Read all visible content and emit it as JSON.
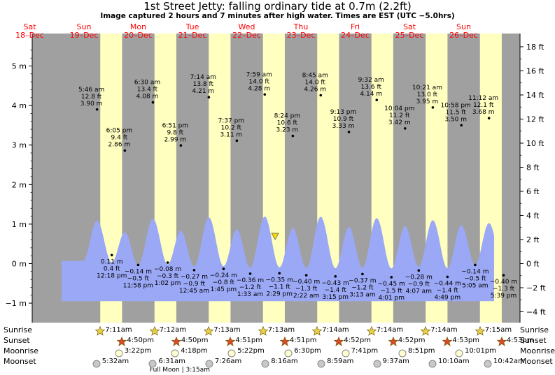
{
  "title": "1st Street Jetty: falling  ordinary tide at 0.7m (2.2ft)",
  "subtitle": "Image captured 2 hours and 7 minutes after high water. Times are EST (UTC −5.0hrs)",
  "days": [
    {
      "dow": "Sat",
      "date": "18–Dec"
    },
    {
      "dow": "Sun",
      "date": "19–Dec"
    },
    {
      "dow": "Mon",
      "date": "20–Dec"
    },
    {
      "dow": "Tue",
      "date": "21–Dec"
    },
    {
      "dow": "Wed",
      "date": "22–Dec"
    },
    {
      "dow": "Thu",
      "date": "23–Dec"
    },
    {
      "dow": "Fri",
      "date": "24–Dec"
    },
    {
      "dow": "Sat",
      "date": "25–Dec"
    },
    {
      "dow": "Sun",
      "date": "26–Dec"
    }
  ],
  "colors": {
    "night": "#a0a0a0",
    "day": "#ffffc0",
    "tide": "#9aa8f5",
    "day_label": "#ff0000",
    "marker": "#ffd700"
  },
  "chart_data": {
    "type": "area",
    "left_axis": {
      "unit": "m",
      "ticks": [
        -1,
        0,
        1,
        2,
        3,
        4,
        5
      ],
      "labels": [
        "−1 m",
        "0 m",
        "1 m",
        "2 m",
        "3 m",
        "4 m",
        "5 m"
      ]
    },
    "right_axis": {
      "unit": "ft",
      "ticks": [
        -4,
        -2,
        0,
        2,
        4,
        6,
        8,
        10,
        12,
        14,
        16,
        18
      ],
      "labels": [
        "−4 ft",
        "−2 ft",
        "0 ft",
        "2 ft",
        "4 ft",
        "6 ft",
        "8 ft",
        "10 ft",
        "12 ft",
        "14 ft",
        "16 ft",
        "18 ft"
      ]
    },
    "ylim_m": [
      -1.15,
      5.6
    ],
    "highs": [
      {
        "time": "5:46 am",
        "ft": "12.8 ft",
        "m": 3.9,
        "m_label": "3.90 m",
        "day": 1,
        "hour": 5.77
      },
      {
        "time": "6:05 pm",
        "ft": "9.4 ft",
        "m": 2.86,
        "m_label": "2.86 m",
        "day": 1,
        "hour": 18.08
      },
      {
        "time": "6:30 am",
        "ft": "13.4 ft",
        "m": 4.08,
        "m_label": "4.08 m",
        "day": 2,
        "hour": 6.5
      },
      {
        "time": "6:51 pm",
        "ft": "9.8 ft",
        "m": 2.99,
        "m_label": "2.99 m",
        "day": 2,
        "hour": 18.85
      },
      {
        "time": "7:14 am",
        "ft": "13.8 ft",
        "m": 4.21,
        "m_label": "4.21 m",
        "day": 3,
        "hour": 7.23
      },
      {
        "time": "7:37 pm",
        "ft": "10.2 ft",
        "m": 3.11,
        "m_label": "3.11 m",
        "day": 3,
        "hour": 19.62
      },
      {
        "time": "7:59 am",
        "ft": "14.0 ft",
        "m": 4.28,
        "m_label": "4.28 m",
        "day": 4,
        "hour": 7.98
      },
      {
        "time": "8:24 pm",
        "ft": "10.6 ft",
        "m": 3.23,
        "m_label": "3.23 m",
        "day": 4,
        "hour": 20.4
      },
      {
        "time": "8:45 am",
        "ft": "14.0 ft",
        "m": 4.26,
        "m_label": "4.26 m",
        "day": 5,
        "hour": 8.75
      },
      {
        "time": "9:13 pm",
        "ft": "10.9 ft",
        "m": 3.33,
        "m_label": "3.33 m",
        "day": 5,
        "hour": 21.22
      },
      {
        "time": "9:32 am",
        "ft": "13.6 ft",
        "m": 4.14,
        "m_label": "4.14 m",
        "day": 6,
        "hour": 9.53
      },
      {
        "time": "10:04 pm",
        "ft": "11.2 ft",
        "m": 3.42,
        "m_label": "3.42 m",
        "day": 6,
        "hour": 22.07
      },
      {
        "time": "10:21 am",
        "ft": "13.0 ft",
        "m": 3.95,
        "m_label": "3.95 m",
        "day": 7,
        "hour": 10.35
      },
      {
        "time": "10:58 pm",
        "ft": "11.5 ft",
        "m": 3.5,
        "m_label": "3.50 m",
        "day": 7,
        "hour": 22.97
      },
      {
        "time": "11:12 am",
        "ft": "12.1 ft",
        "m": 3.68,
        "m_label": "3.68 m",
        "day": 8,
        "hour": 11.2
      }
    ],
    "lows": [
      {
        "m": 0.11,
        "m_label": "0.11 m",
        "ft": "0.4 ft",
        "time": "12:18 pm",
        "day": 1,
        "hour": 12.3
      },
      {
        "m": -0.14,
        "m_label": "−0.14 m",
        "ft": "−0.5 ft",
        "time": "11:58 pm",
        "day": 1,
        "hour": 23.97
      },
      {
        "m": -0.08,
        "m_label": "−0.08 m",
        "ft": "−0.3 ft",
        "time": "1:02 pm",
        "day": 2,
        "hour": 13.03
      },
      {
        "m": -0.27,
        "m_label": "−0.27 m",
        "ft": "−0.9 ft",
        "time": "12:45 am",
        "day": 3,
        "hour": 0.75
      },
      {
        "m": -0.24,
        "m_label": "−0.24 m",
        "ft": "−0.8 ft",
        "time": "1:45 pm",
        "day": 3,
        "hour": 13.75
      },
      {
        "m": -0.36,
        "m_label": "−0.36 m",
        "ft": "−1.2 ft",
        "time": "1:33 am",
        "day": 4,
        "hour": 1.55
      },
      {
        "m": -0.35,
        "m_label": "−0.35 m",
        "ft": "−1.1 ft",
        "time": "2:29 pm",
        "day": 4,
        "hour": 14.48
      },
      {
        "m": -0.4,
        "m_label": "−0.40 m",
        "ft": "−1.3 ft",
        "time": "2:22 am",
        "day": 5,
        "hour": 2.37
      },
      {
        "m": -0.43,
        "m_label": "−0.43 m",
        "ft": "−1.4 ft",
        "time": "3:15 pm",
        "day": 5,
        "hour": 15.25
      },
      {
        "m": -0.37,
        "m_label": "−0.37 m",
        "ft": "−1.2 ft",
        "time": "3:13 am",
        "day": 6,
        "hour": 3.22
      },
      {
        "m": -0.45,
        "m_label": "−0.45 m",
        "ft": "−1.5 ft",
        "time": "4:01 pm",
        "day": 6,
        "hour": 16.02
      },
      {
        "m": -0.28,
        "m_label": "−0.28 m",
        "ft": "−0.9 ft",
        "time": "4:07 am",
        "day": 7,
        "hour": 4.12
      },
      {
        "m": -0.44,
        "m_label": "−0.44 m",
        "ft": "−1.4 ft",
        "time": "4:49 pm",
        "day": 7,
        "hour": 16.82
      },
      {
        "m": -0.14,
        "m_label": "−0.14 m",
        "ft": "−0.5 ft",
        "time": "5:05 am",
        "day": 8,
        "hour": 5.08
      },
      {
        "m": -0.4,
        "m_label": "−0.40 m",
        "ft": "−1.3 ft",
        "time": "5:39 pm",
        "day": 8,
        "hour": 17.65
      }
    ],
    "current": {
      "m": 0.7,
      "day": 4,
      "hour": 10.1
    }
  },
  "astro": {
    "labels": {
      "sunrise": "Sunrise",
      "sunset": "Sunset",
      "moonrise": "Moonrise",
      "moonset": "Moonset"
    },
    "sunrise": [
      "7:11am",
      "7:12am",
      "7:13am",
      "7:13am",
      "7:14am",
      "7:14am",
      "7:14am",
      "7:15am"
    ],
    "sunset": [
      "4:50pm",
      "4:50pm",
      "4:51pm",
      "4:51pm",
      "4:52pm",
      "4:52pm",
      "4:53pm",
      "4:53pm"
    ],
    "moonrise": [
      "3:22pm",
      "4:18pm",
      "5:22pm",
      "6:30pm",
      "7:41pm",
      "8:51pm",
      "10:01pm"
    ],
    "moonset": [
      "5:32am",
      "6:31am",
      "7:26am",
      "8:16am",
      "8:59am",
      "9:37am",
      "10:10am",
      "10:42am"
    ],
    "full_moon": "Full Moon | 3:15am"
  }
}
